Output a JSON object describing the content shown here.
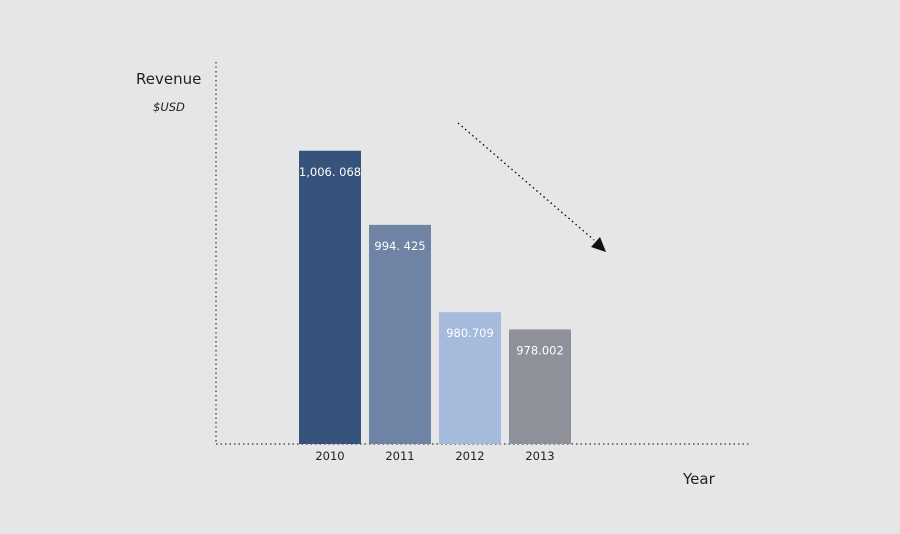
{
  "chart_data": {
    "type": "bar",
    "categories": [
      "2010",
      "2011",
      "2012",
      "2013"
    ],
    "values": [
      1006.068,
      994.425,
      980.709,
      978.002
    ],
    "data_labels": [
      "1,006. 068",
      "994. 425",
      "980.709",
      "978.002"
    ],
    "bar_colors": [
      "#35537b",
      "#6f83a4",
      "#a6badb",
      "#8e9199"
    ],
    "label_colors": [
      "#ffffff",
      "#ffffff",
      "#ffffff",
      "#ffffff"
    ],
    "title": "",
    "xlabel": "Year",
    "ylabel": "Revenue",
    "yunit": "$USD",
    "ylim": [
      960,
      1012
    ],
    "grid": false,
    "trend_arrow": "downward",
    "axis_style": "dotted"
  }
}
